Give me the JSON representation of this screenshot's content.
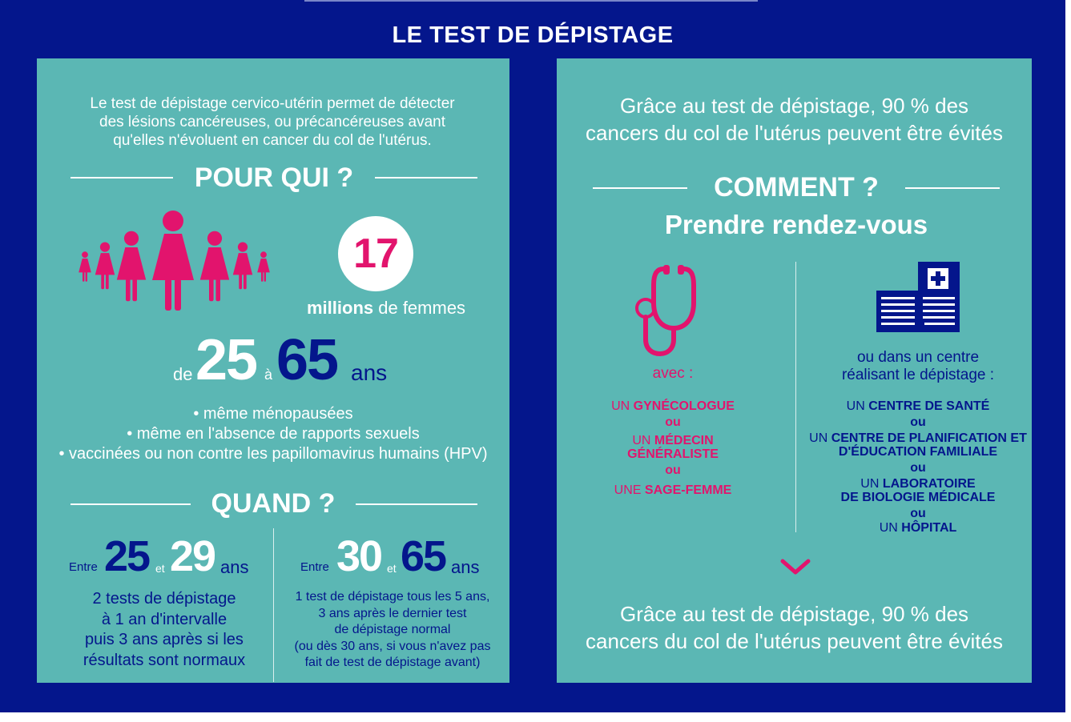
{
  "title": "LE TEST DE DÉPISTAGE",
  "colors": {
    "navy": "#04168c",
    "teal": "#5bb7b4",
    "pink": "#e2146d",
    "white": "#ffffff"
  },
  "left": {
    "intro": [
      "Le test de dépistage cervico-utérin permet de détecter",
      "des lésions cancéreuses, ou précancéreuses avant",
      "qu'elles n'évoluent en cancer du col de l'utérus."
    ],
    "pour_qui": {
      "heading": "POUR QUI ?",
      "icon": "women-group-icon",
      "count": "17",
      "count_strong": "millions",
      "count_rest": " de femmes",
      "age_prefix": "de",
      "age_from": "25",
      "age_mid": "à",
      "age_to": "65",
      "age_suffix": "ans",
      "bullets": [
        "• même ménopausées",
        "• même en l'absence de rapports sexuels",
        "• vaccinées ou non contre les papillomavirus humains (HPV)"
      ]
    },
    "quand": {
      "heading": "QUAND ?",
      "col1": {
        "prefix": "Entre",
        "from": "25",
        "mid": "et",
        "to": "29",
        "suffix": "ans",
        "lines": [
          "2 tests de dépistage",
          "à 1 an d'intervalle",
          "puis 3 ans après si les",
          "résultats sont normaux"
        ]
      },
      "col2": {
        "prefix": "Entre",
        "from": "30",
        "mid": "et",
        "to": "65",
        "suffix": "ans",
        "lines": [
          "1 test de dépistage tous les 5 ans,",
          "3 ans après le dernier test",
          "de dépistage normal",
          "(ou dès 30 ans, si vous n'avez pas",
          "fait de test de dépistage avant)"
        ]
      }
    }
  },
  "right": {
    "top_text": [
      "Grâce au test de dépistage, 90 % des",
      "cancers du col de l'utérus peuvent être évités"
    ],
    "heading": "COMMENT ?",
    "subheading": "Prendre rendez-vous",
    "doctor": {
      "icon": "stethoscope-icon",
      "label": "avec :",
      "items": [
        {
          "article": "UN ",
          "name": "GYNÉCOLOGUE"
        },
        {
          "article": "",
          "name": "ou"
        },
        {
          "article": "UN ",
          "name": "MÉDECIN"
        },
        {
          "article": "",
          "name": "GÉNÉRALISTE"
        },
        {
          "article": "",
          "name": "ou"
        },
        {
          "article": "UNE ",
          "name": "SAGE-FEMME"
        }
      ]
    },
    "centre": {
      "icon": "hospital-building-icon",
      "label": [
        "ou dans un centre",
        "réalisant le dépistage :"
      ],
      "items": [
        {
          "article": "UN ",
          "name": "CENTRE DE SANTÉ"
        },
        {
          "article": "",
          "name": "ou"
        },
        {
          "article": "UN ",
          "name": "CENTRE DE PLANIFICATION ET"
        },
        {
          "article": "",
          "name": "D'ÉDUCATION FAMILIALE"
        },
        {
          "article": "",
          "name": "ou"
        },
        {
          "article": "UN ",
          "name": "LABORATOIRE"
        },
        {
          "article": "",
          "name": "DE BIOLOGIE MÉDICALE"
        },
        {
          "article": "",
          "name": "ou"
        },
        {
          "article": "UN ",
          "name": "HÔPITAL"
        }
      ]
    },
    "arrow_icon": "chevron-down-icon",
    "bottom_text": [
      "Grâce au test de dépistage, 90 % des",
      "cancers du col de l'utérus peuvent être évités"
    ]
  }
}
